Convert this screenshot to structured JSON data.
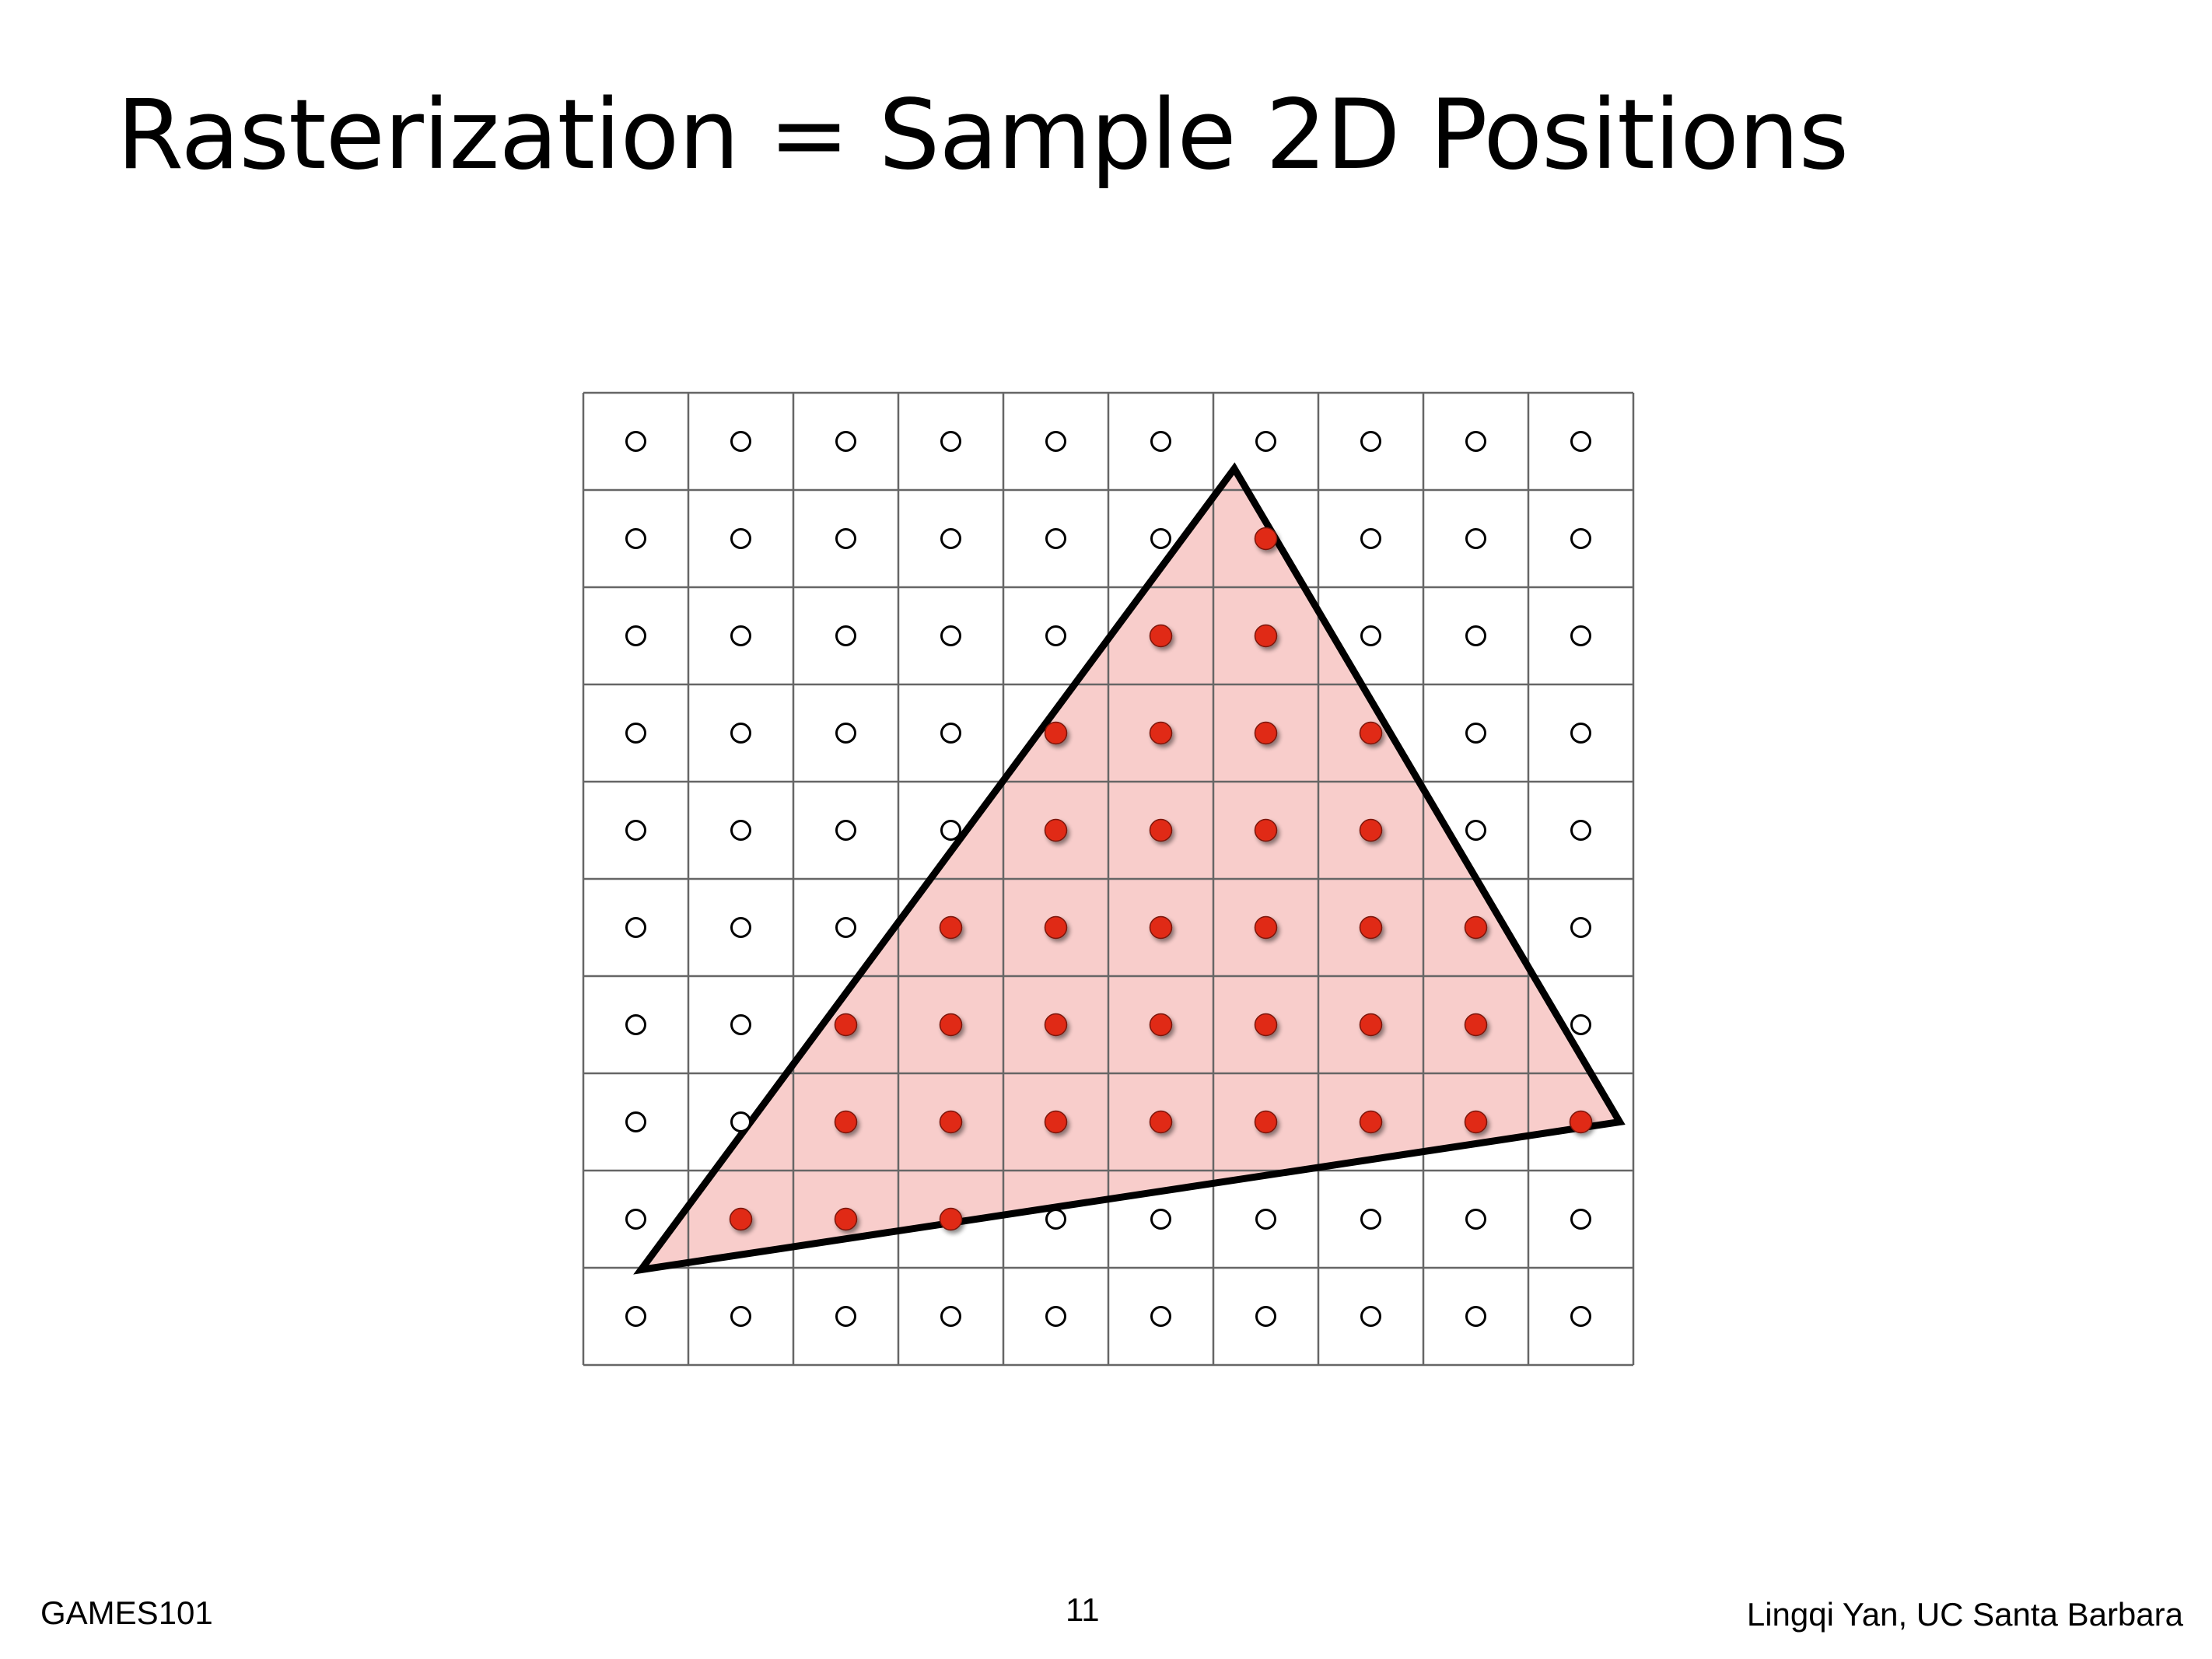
{
  "slide": {
    "title": "Rasterization = Sample 2D Positions"
  },
  "footer": {
    "course": "GAMES101",
    "page_number": "11",
    "author": "Lingqi Yan, UC Santa Barbara"
  },
  "grid": {
    "columns": 10,
    "rows": 10,
    "sample_position": "pixel center"
  },
  "triangle": {
    "vertices": [
      [
        6.2,
        0.78
      ],
      [
        0.55,
        9.02
      ],
      [
        9.87,
        7.5
      ]
    ]
  },
  "colors": {
    "triangle_fill": "#f8cdcb",
    "triangle_stroke": "#000000",
    "covered_sample": "#e02a12",
    "uncovered_sample": "#ffffff",
    "grid_line": "#666666"
  }
}
